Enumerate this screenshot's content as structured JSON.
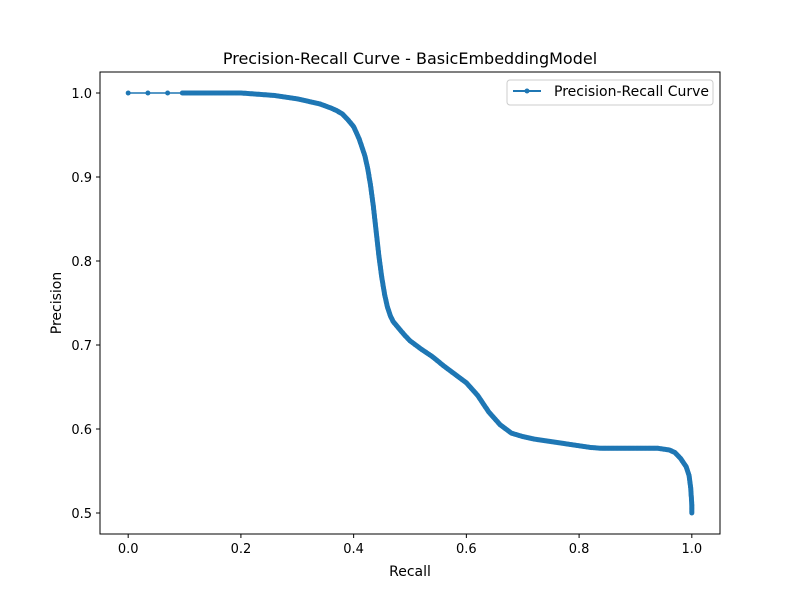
{
  "chart_data": {
    "type": "line",
    "title": "Precision-Recall Curve - BasicEmbeddingModel",
    "xlabel": "Recall",
    "ylabel": "Precision",
    "xlim": [
      -0.05,
      1.05
    ],
    "ylim": [
      0.475,
      1.025
    ],
    "xticks": [
      "0.0",
      "0.2",
      "0.4",
      "0.6",
      "0.8",
      "1.0"
    ],
    "yticks": [
      "0.5",
      "0.6",
      "0.7",
      "0.8",
      "0.9",
      "1.0"
    ],
    "grid": false,
    "legend": {
      "position": "top-right",
      "entries": [
        "Precision-Recall Curve"
      ]
    },
    "series": [
      {
        "name": "Precision-Recall Curve",
        "color": "#1f77b4",
        "marker": "circle",
        "x": [
          0.0,
          0.035,
          0.07,
          0.1,
          0.11,
          0.125,
          0.14,
          0.16,
          0.18,
          0.2,
          0.22,
          0.24,
          0.26,
          0.28,
          0.3,
          0.32,
          0.34,
          0.36,
          0.37,
          0.38,
          0.39,
          0.4,
          0.41,
          0.42,
          0.425,
          0.43,
          0.435,
          0.44,
          0.445,
          0.45,
          0.455,
          0.46,
          0.465,
          0.47,
          0.48,
          0.49,
          0.5,
          0.52,
          0.54,
          0.56,
          0.58,
          0.6,
          0.62,
          0.64,
          0.66,
          0.68,
          0.7,
          0.72,
          0.75,
          0.78,
          0.8,
          0.82,
          0.84,
          0.86,
          0.88,
          0.9,
          0.92,
          0.94,
          0.95,
          0.96,
          0.97,
          0.98,
          0.99,
          0.995,
          0.998,
          1.0,
          1.0
        ],
        "y": [
          1.0,
          1.0,
          1.0,
          1.0,
          1.0,
          1.0,
          1.0,
          1.0,
          1.0,
          1.0,
          0.999,
          0.998,
          0.997,
          0.995,
          0.993,
          0.99,
          0.987,
          0.982,
          0.979,
          0.975,
          0.968,
          0.96,
          0.945,
          0.925,
          0.91,
          0.89,
          0.865,
          0.835,
          0.805,
          0.78,
          0.76,
          0.745,
          0.735,
          0.728,
          0.72,
          0.712,
          0.705,
          0.695,
          0.686,
          0.675,
          0.665,
          0.655,
          0.64,
          0.62,
          0.605,
          0.595,
          0.591,
          0.588,
          0.585,
          0.582,
          0.58,
          0.578,
          0.577,
          0.577,
          0.577,
          0.577,
          0.577,
          0.577,
          0.576,
          0.575,
          0.572,
          0.565,
          0.555,
          0.545,
          0.53,
          0.51,
          0.5
        ]
      }
    ]
  }
}
